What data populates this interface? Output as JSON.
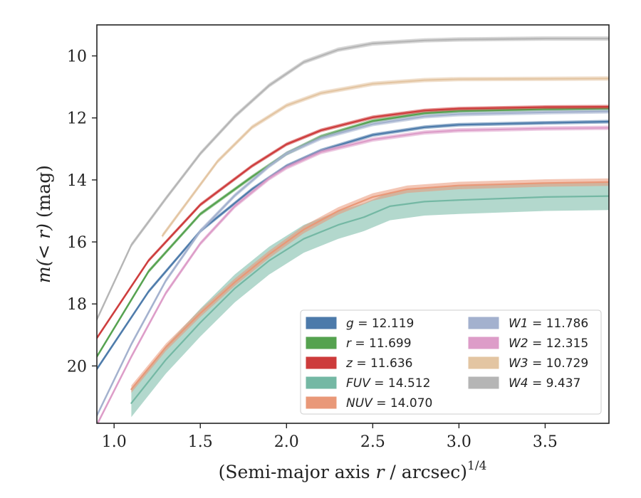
{
  "chart_data": {
    "type": "line",
    "title": "",
    "xlabel": "(Semi-major axis r / arcsec)",
    "xlabel_r": "r",
    "xlabel_pre": "(Semi-major axis ",
    "xlabel_post": " / arcsec)",
    "xlabel_superscript": "1/4",
    "ylabel": "m(< r) (mag)",
    "ylabel_math": "m(< r)",
    "ylabel_unit": " (mag)",
    "xlim": [
      0.9,
      3.87
    ],
    "ylim": [
      21.85,
      9.0
    ],
    "y_inverted": true,
    "xticks": [
      1.0,
      1.5,
      2.0,
      2.5,
      3.0,
      3.5
    ],
    "xtick_labels": [
      "1.0",
      "1.5",
      "2.0",
      "2.5",
      "3.0",
      "3.5"
    ],
    "yticks": [
      10,
      12,
      14,
      16,
      18,
      20
    ],
    "ytick_labels": [
      "10",
      "12",
      "14",
      "16",
      "18",
      "20"
    ],
    "grid": false,
    "legend_position": "lower-right",
    "legend_columns": 2,
    "series": [
      {
        "name": "g",
        "legend_label": "= 12.119",
        "color": "#4c7aaa",
        "band": 0.06,
        "x": [
          0.9,
          1.2,
          1.5,
          1.8,
          2.0,
          2.2,
          2.5,
          2.8,
          3.0,
          3.5,
          3.87
        ],
        "y": [
          20.1,
          17.6,
          15.65,
          14.3,
          13.55,
          13.05,
          12.55,
          12.3,
          12.22,
          12.16,
          12.12
        ]
      },
      {
        "name": "r",
        "legend_label": "= 11.699",
        "color": "#55a24f",
        "band": 0.06,
        "x": [
          0.9,
          1.2,
          1.5,
          1.8,
          2.0,
          2.2,
          2.5,
          2.8,
          3.0,
          3.5,
          3.87
        ],
        "y": [
          19.7,
          16.95,
          15.1,
          13.9,
          13.15,
          12.6,
          12.1,
          11.85,
          11.78,
          11.72,
          11.7
        ]
      },
      {
        "name": "z",
        "legend_label": "= 11.636",
        "color": "#cd3b3b",
        "band": 0.06,
        "x": [
          0.9,
          1.2,
          1.5,
          1.8,
          2.0,
          2.2,
          2.5,
          2.8,
          3.0,
          3.5,
          3.87
        ],
        "y": [
          19.1,
          16.6,
          14.8,
          13.55,
          12.85,
          12.4,
          11.98,
          11.76,
          11.7,
          11.65,
          11.64
        ]
      },
      {
        "name": "FUV",
        "legend_label": "= 14.512",
        "color": "#74b8a4",
        "band": 0.45,
        "x": [
          1.1,
          1.3,
          1.5,
          1.7,
          1.9,
          2.1,
          2.3,
          2.45,
          2.6,
          2.8,
          3.0,
          3.5,
          3.87
        ],
        "y": [
          21.2,
          19.8,
          18.6,
          17.5,
          16.6,
          15.9,
          15.45,
          15.2,
          14.85,
          14.7,
          14.65,
          14.55,
          14.52
        ]
      },
      {
        "name": "NUV",
        "legend_label": "= 14.070",
        "color": "#e99878",
        "band": 0.12,
        "x": [
          1.1,
          1.3,
          1.5,
          1.7,
          1.9,
          2.1,
          2.3,
          2.5,
          2.7,
          3.0,
          3.5,
          3.87
        ],
        "y": [
          20.75,
          19.4,
          18.3,
          17.3,
          16.4,
          15.6,
          15.0,
          14.55,
          14.3,
          14.18,
          14.1,
          14.07
        ]
      },
      {
        "name": "W1",
        "legend_label": "= 11.786",
        "color": "#a3b1ce",
        "band": 0.07,
        "x": [
          0.9,
          1.1,
          1.3,
          1.5,
          1.7,
          1.9,
          2.0,
          2.2,
          2.5,
          2.8,
          3.0,
          3.5,
          3.87
        ],
        "y": [
          21.6,
          19.3,
          17.25,
          15.65,
          14.5,
          13.55,
          13.15,
          12.65,
          12.2,
          11.95,
          11.88,
          11.82,
          11.79
        ]
      },
      {
        "name": "W2",
        "legend_label": "= 12.315",
        "color": "#dd9cc8",
        "band": 0.07,
        "x": [
          0.9,
          1.1,
          1.3,
          1.5,
          1.7,
          1.9,
          2.0,
          2.2,
          2.5,
          2.8,
          3.0,
          3.5,
          3.87
        ],
        "y": [
          21.9,
          19.7,
          17.65,
          16.05,
          14.85,
          13.95,
          13.6,
          13.1,
          12.7,
          12.47,
          12.4,
          12.34,
          12.32
        ]
      },
      {
        "name": "W3",
        "legend_label": "= 10.729",
        "color": "#e3c5a2",
        "band": 0.07,
        "x": [
          1.28,
          1.4,
          1.6,
          1.8,
          2.0,
          2.2,
          2.5,
          2.8,
          3.0,
          3.5,
          3.87
        ],
        "y": [
          15.8,
          14.9,
          13.4,
          12.3,
          11.6,
          11.2,
          10.9,
          10.78,
          10.75,
          10.74,
          10.73
        ]
      },
      {
        "name": "W4",
        "legend_label": "= 9.437",
        "color": "#b5b5b5",
        "band": 0.07,
        "x": [
          0.9,
          1.1,
          1.3,
          1.5,
          1.7,
          1.9,
          2.1,
          2.3,
          2.5,
          2.8,
          3.0,
          3.5,
          3.87
        ],
        "y": [
          18.5,
          16.1,
          14.6,
          13.15,
          11.95,
          10.95,
          10.2,
          9.8,
          9.6,
          9.5,
          9.47,
          9.44,
          9.44
        ]
      }
    ],
    "legend": [
      {
        "name": "g",
        "value": "= 12.119",
        "color": "#4c7aaa"
      },
      {
        "name": "r",
        "value": "= 11.699",
        "color": "#55a24f"
      },
      {
        "name": "z",
        "value": "= 11.636",
        "color": "#cd3b3b"
      },
      {
        "name": "FUV",
        "value": "= 14.512",
        "color": "#74b8a4"
      },
      {
        "name": "NUV",
        "value": "= 14.070",
        "color": "#e99878"
      },
      {
        "name": "W1",
        "value": "= 11.786",
        "color": "#a3b1ce"
      },
      {
        "name": "W2",
        "value": "= 12.315",
        "color": "#dd9cc8"
      },
      {
        "name": "W3",
        "value": "= 10.729",
        "color": "#e3c5a2"
      },
      {
        "name": "W4",
        "value": "= 9.437",
        "color": "#b5b5b5"
      }
    ]
  }
}
